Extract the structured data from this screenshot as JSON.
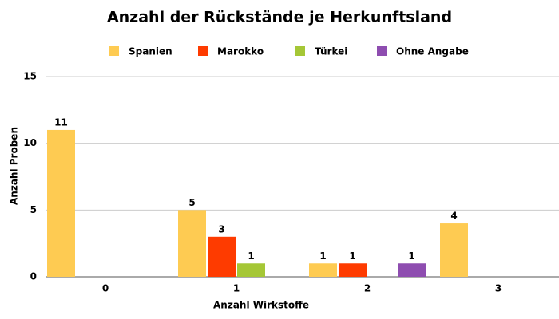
{
  "chart_data": {
    "type": "bar",
    "title": "Anzahl der Rückstände je Herkunftsland",
    "x_label": "Anzahl Wirkstoffe",
    "y_label": "Anzahl Proben",
    "categories": [
      "0",
      "1",
      "2",
      "3"
    ],
    "series": [
      {
        "name": "Spanien",
        "color": "#fecb52",
        "values": [
          11,
          5,
          1,
          4
        ]
      },
      {
        "name": "Marokko",
        "color": "#fe3b00",
        "values": [
          null,
          3,
          1,
          null
        ]
      },
      {
        "name": "Türkei",
        "color": "#a5c736",
        "values": [
          null,
          1,
          null,
          null
        ]
      },
      {
        "name": "Ohne Angabe",
        "color": "#8e4db0",
        "values": [
          null,
          null,
          1,
          null
        ]
      }
    ],
    "ylim": [
      0,
      15
    ],
    "yticks": [
      0,
      5,
      10,
      15
    ],
    "grid": true
  }
}
